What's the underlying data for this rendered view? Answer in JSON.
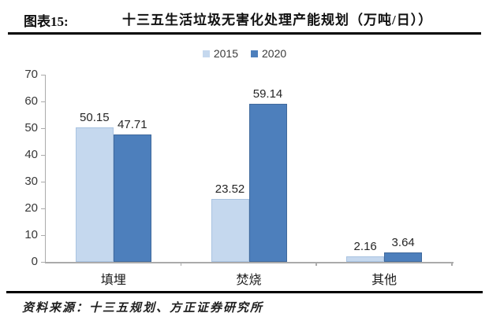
{
  "header": {
    "figure_label": "图表15:",
    "title": "十三五生活垃圾无害化处理产能规划（万吨/日））"
  },
  "chart_data": {
    "type": "bar",
    "title": "十三五生活垃圾无害化处理产能规划（万吨/日））",
    "categories": [
      "填埋",
      "焚烧",
      "其他"
    ],
    "series": [
      {
        "name": "2015",
        "color": "#c5d8ee",
        "border_color": "#a9c3e1",
        "values": [
          50.15,
          23.52,
          2.16
        ]
      },
      {
        "name": "2020",
        "color": "#4d7fbc",
        "border_color": "#40699c",
        "values": [
          47.71,
          59.14,
          3.64
        ]
      }
    ],
    "value_labels": [
      "50.15",
      "47.71",
      "23.52",
      "59.14",
      "2.16",
      "3.64"
    ],
    "ylim": [
      0,
      70
    ],
    "yticks": [
      0,
      10,
      20,
      30,
      40,
      50,
      60,
      70
    ],
    "legend_position": "top",
    "grid": false,
    "axis_color": "#ababab"
  },
  "footer": {
    "source_text": "资料来源：十三五规划、方正证券研究所"
  }
}
